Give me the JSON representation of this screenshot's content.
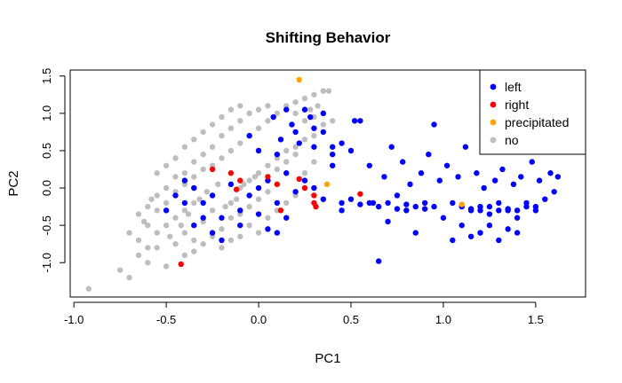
{
  "chart_data": {
    "type": "scatter",
    "title": "Shifting Behavior",
    "xlabel": "PC1",
    "ylabel": "PC2",
    "xlim": [
      -1.02,
      1.77
    ],
    "ylim": [
      -1.46,
      1.58
    ],
    "xticks": [
      -1.0,
      -0.5,
      0.0,
      0.5,
      1.0,
      1.5
    ],
    "xtick_labels": [
      "-1.0",
      "-0.5",
      "0.0",
      "0.5",
      "1.0",
      "1.5"
    ],
    "yticks": [
      -1.0,
      -0.5,
      0.0,
      0.5,
      1.0,
      1.5
    ],
    "ytick_labels": [
      "-1.0",
      "-0.5",
      "0.0",
      "0.5",
      "1.0",
      "1.5"
    ],
    "grid": false,
    "legend_position": "top-right",
    "series": [
      {
        "name": "left",
        "color": "#0000ff",
        "points": [
          [
            -0.5,
            -0.3
          ],
          [
            -0.45,
            -0.1
          ],
          [
            -0.4,
            0.1
          ],
          [
            -0.35,
            -0.5
          ],
          [
            -0.3,
            -0.2
          ],
          [
            -0.25,
            -0.6
          ],
          [
            -0.2,
            -0.4
          ],
          [
            -0.15,
            0.05
          ],
          [
            -0.1,
            -0.3
          ],
          [
            -0.05,
            -0.1
          ],
          [
            0.0,
            0.0
          ],
          [
            0.05,
            0.1
          ],
          [
            0.1,
            -0.2
          ],
          [
            0.15,
            0.2
          ],
          [
            0.2,
            -0.05
          ],
          [
            0.25,
            0.1
          ],
          [
            0.3,
            0.0
          ],
          [
            0.35,
            -0.15
          ],
          [
            0.4,
            0.3
          ],
          [
            0.45,
            -0.3
          ],
          [
            0.12,
            0.65
          ],
          [
            0.18,
            0.85
          ],
          [
            0.22,
            0.6
          ],
          [
            0.28,
            0.95
          ],
          [
            0.3,
            0.55
          ],
          [
            0.35,
            0.75
          ],
          [
            0.4,
            0.45
          ],
          [
            0.45,
            0.6
          ],
          [
            0.08,
            0.95
          ],
          [
            0.15,
            1.05
          ],
          [
            -0.4,
            -0.2
          ],
          [
            -0.35,
            0.0
          ],
          [
            -0.3,
            -0.4
          ],
          [
            -0.25,
            -0.1
          ],
          [
            -0.2,
            -0.7
          ],
          [
            -0.1,
            -0.5
          ],
          [
            0.0,
            -0.35
          ],
          [
            0.05,
            -0.55
          ],
          [
            0.1,
            -0.6
          ],
          [
            0.15,
            -0.4
          ],
          [
            0.5,
            0.5
          ],
          [
            0.55,
            0.9
          ],
          [
            0.6,
            0.3
          ],
          [
            0.62,
            -0.2
          ],
          [
            0.65,
            -0.98
          ],
          [
            0.68,
            0.15
          ],
          [
            0.7,
            -0.45
          ],
          [
            0.72,
            0.55
          ],
          [
            0.75,
            -0.1
          ],
          [
            0.78,
            0.35
          ],
          [
            0.8,
            -0.3
          ],
          [
            0.82,
            0.05
          ],
          [
            0.85,
            -0.6
          ],
          [
            0.88,
            0.2
          ],
          [
            0.9,
            -0.2
          ],
          [
            0.92,
            0.45
          ],
          [
            0.95,
            -0.25
          ],
          [
            0.98,
            0.1
          ],
          [
            1.0,
            -0.4
          ],
          [
            1.02,
            0.3
          ],
          [
            1.05,
            -0.2
          ],
          [
            1.08,
            0.15
          ],
          [
            1.1,
            -0.5
          ],
          [
            1.12,
            0.55
          ],
          [
            1.15,
            -0.3
          ],
          [
            1.18,
            0.2
          ],
          [
            1.2,
            -0.25
          ],
          [
            1.22,
            0.0
          ],
          [
            1.25,
            -0.35
          ],
          [
            1.28,
            0.1
          ],
          [
            1.3,
            -0.2
          ],
          [
            1.32,
            0.25
          ],
          [
            1.35,
            -0.3
          ],
          [
            1.38,
            0.05
          ],
          [
            1.4,
            -0.4
          ],
          [
            1.42,
            0.15
          ],
          [
            1.45,
            -0.2
          ],
          [
            1.48,
            0.35
          ],
          [
            1.5,
            -0.25
          ],
          [
            1.52,
            0.1
          ],
          [
            1.55,
            -0.15
          ],
          [
            1.58,
            0.2
          ],
          [
            1.6,
            -0.05
          ],
          [
            1.62,
            0.15
          ],
          [
            1.2,
            -0.6
          ],
          [
            1.25,
            -0.5
          ],
          [
            1.3,
            -0.7
          ],
          [
            1.35,
            -0.55
          ],
          [
            1.15,
            -0.65
          ],
          [
            1.4,
            -0.6
          ],
          [
            1.05,
            -0.7
          ],
          [
            1.1,
            -0.25
          ],
          [
            1.2,
            -0.3
          ],
          [
            1.3,
            -0.3
          ],
          [
            1.4,
            -0.3
          ],
          [
            1.5,
            -0.3
          ],
          [
            1.15,
            -0.28
          ],
          [
            1.25,
            -0.25
          ],
          [
            1.35,
            -0.28
          ],
          [
            1.45,
            -0.25
          ],
          [
            0.9,
            -0.28
          ],
          [
            0.85,
            -0.25
          ],
          [
            0.8,
            -0.22
          ],
          [
            0.75,
            -0.28
          ],
          [
            0.7,
            -0.2
          ],
          [
            0.65,
            -0.25
          ],
          [
            0.6,
            -0.2
          ],
          [
            0.55,
            -0.22
          ],
          [
            0.5,
            -0.15
          ],
          [
            0.45,
            -0.2
          ],
          [
            0.95,
            0.85
          ],
          [
            0.52,
            0.9
          ],
          [
            0.4,
            0.55
          ],
          [
            0.35,
            1.0
          ],
          [
            0.25,
            1.05
          ],
          [
            0.3,
            0.8
          ],
          [
            0.2,
            0.75
          ],
          [
            0.0,
            0.5
          ],
          [
            -0.05,
            0.7
          ],
          [
            0.1,
            0.45
          ]
        ]
      },
      {
        "name": "right",
        "color": "#ff0000",
        "points": [
          [
            -0.25,
            0.25
          ],
          [
            -0.15,
            0.2
          ],
          [
            -0.1,
            0.1
          ],
          [
            0.05,
            0.15
          ],
          [
            0.1,
            0.05
          ],
          [
            0.12,
            -0.3
          ],
          [
            0.25,
            0.0
          ],
          [
            0.3,
            -0.2
          ],
          [
            0.31,
            -0.25
          ],
          [
            0.55,
            -0.08
          ],
          [
            -0.42,
            -1.02
          ],
          [
            -0.12,
            -0.02
          ],
          [
            0.3,
            -0.1
          ],
          [
            0.22,
            0.12
          ]
        ]
      },
      {
        "name": "precipitated",
        "color": "#ffa500",
        "points": [
          [
            0.22,
            1.45
          ],
          [
            0.37,
            0.05
          ],
          [
            1.1,
            -0.22
          ]
        ]
      },
      {
        "name": "no",
        "color": "#bebebe",
        "points": [
          [
            -0.92,
            -1.35
          ],
          [
            -0.75,
            -1.1
          ],
          [
            -0.7,
            -1.2
          ],
          [
            -0.65,
            -0.9
          ],
          [
            -0.6,
            -1.0
          ],
          [
            -0.55,
            -0.8
          ],
          [
            -0.5,
            -1.05
          ],
          [
            -0.45,
            -0.75
          ],
          [
            -0.4,
            -0.9
          ],
          [
            -0.35,
            -0.7
          ],
          [
            -0.6,
            -0.5
          ],
          [
            -0.55,
            -0.3
          ],
          [
            -0.5,
            -0.2
          ],
          [
            -0.45,
            -0.05
          ],
          [
            -0.4,
            0.05
          ],
          [
            -0.35,
            0.15
          ],
          [
            -0.3,
            0.25
          ],
          [
            -0.25,
            0.3
          ],
          [
            -0.2,
            0.4
          ],
          [
            -0.15,
            0.5
          ],
          [
            -0.1,
            0.6
          ],
          [
            -0.05,
            0.7
          ],
          [
            0.0,
            0.8
          ],
          [
            0.05,
            0.9
          ],
          [
            0.1,
            1.0
          ],
          [
            0.15,
            1.1
          ],
          [
            0.2,
            1.15
          ],
          [
            0.25,
            1.2
          ],
          [
            0.3,
            1.25
          ],
          [
            0.35,
            1.3
          ],
          [
            -0.2,
            0.7
          ],
          [
            -0.15,
            0.8
          ],
          [
            -0.1,
            0.9
          ],
          [
            -0.05,
            1.0
          ],
          [
            0.0,
            1.05
          ],
          [
            0.05,
            1.1
          ],
          [
            -0.25,
            0.55
          ],
          [
            -0.3,
            0.45
          ],
          [
            -0.35,
            0.35
          ],
          [
            -0.4,
            0.2
          ],
          [
            -0.65,
            -0.35
          ],
          [
            -0.6,
            -0.25
          ],
          [
            -0.55,
            -0.1
          ],
          [
            -0.5,
            0.0
          ],
          [
            -0.45,
            0.15
          ],
          [
            -0.4,
            -0.3
          ],
          [
            -0.35,
            -0.2
          ],
          [
            -0.3,
            -0.45
          ],
          [
            -0.25,
            -0.3
          ],
          [
            -0.2,
            -0.55
          ],
          [
            -0.15,
            -0.4
          ],
          [
            -0.1,
            -0.65
          ],
          [
            -0.05,
            -0.5
          ],
          [
            0.0,
            -0.6
          ],
          [
            0.05,
            -0.4
          ],
          [
            0.1,
            -0.3
          ],
          [
            0.15,
            -0.2
          ],
          [
            0.2,
            -0.1
          ],
          [
            -0.7,
            -0.6
          ],
          [
            -0.65,
            -0.7
          ],
          [
            -0.6,
            -0.8
          ],
          [
            -0.55,
            -0.6
          ],
          [
            -0.5,
            -0.5
          ],
          [
            -0.45,
            -0.4
          ],
          [
            -0.4,
            -0.6
          ],
          [
            -0.35,
            -0.85
          ],
          [
            -0.3,
            -0.75
          ],
          [
            -0.25,
            -0.65
          ],
          [
            -0.2,
            -0.8
          ],
          [
            -0.15,
            -0.7
          ],
          [
            -0.1,
            0.0
          ],
          [
            -0.05,
            0.1
          ],
          [
            0.0,
            0.2
          ],
          [
            0.05,
            0.3
          ],
          [
            0.1,
            0.4
          ],
          [
            0.15,
            0.5
          ],
          [
            0.2,
            0.55
          ],
          [
            0.25,
            0.65
          ],
          [
            0.3,
            0.7
          ],
          [
            0.35,
            0.85
          ],
          [
            0.1,
            0.25
          ],
          [
            0.15,
            0.35
          ],
          [
            0.2,
            0.45
          ],
          [
            0.25,
            0.2
          ],
          [
            0.3,
            0.35
          ],
          [
            0.05,
            -0.05
          ],
          [
            0.0,
            -0.15
          ],
          [
            -0.05,
            -0.25
          ],
          [
            -0.1,
            -0.35
          ],
          [
            -0.15,
            -0.2
          ],
          [
            -0.55,
            0.2
          ],
          [
            -0.5,
            0.3
          ],
          [
            -0.45,
            0.4
          ],
          [
            -0.4,
            0.55
          ],
          [
            -0.35,
            0.65
          ],
          [
            -0.3,
            0.75
          ],
          [
            -0.25,
            0.85
          ],
          [
            -0.2,
            0.95
          ],
          [
            -0.15,
            1.05
          ],
          [
            -0.1,
            1.1
          ],
          [
            0.35,
            1.0
          ],
          [
            0.3,
            0.95
          ],
          [
            0.28,
            1.05
          ],
          [
            0.38,
            1.3
          ],
          [
            0.4,
            0.9
          ],
          [
            0.32,
            1.1
          ],
          [
            0.25,
            0.9
          ],
          [
            0.2,
            1.0
          ],
          [
            -0.62,
            -0.45
          ],
          [
            -0.58,
            -0.15
          ],
          [
            -0.48,
            -0.65
          ],
          [
            -0.42,
            -0.5
          ],
          [
            -0.38,
            -0.35
          ],
          [
            -0.32,
            -0.15
          ],
          [
            -0.28,
            -0.05
          ],
          [
            -0.22,
            0.05
          ],
          [
            -0.18,
            -0.25
          ],
          [
            -0.12,
            -0.15
          ],
          [
            -0.08,
            0.05
          ],
          [
            -0.02,
            0.15
          ]
        ]
      }
    ]
  }
}
